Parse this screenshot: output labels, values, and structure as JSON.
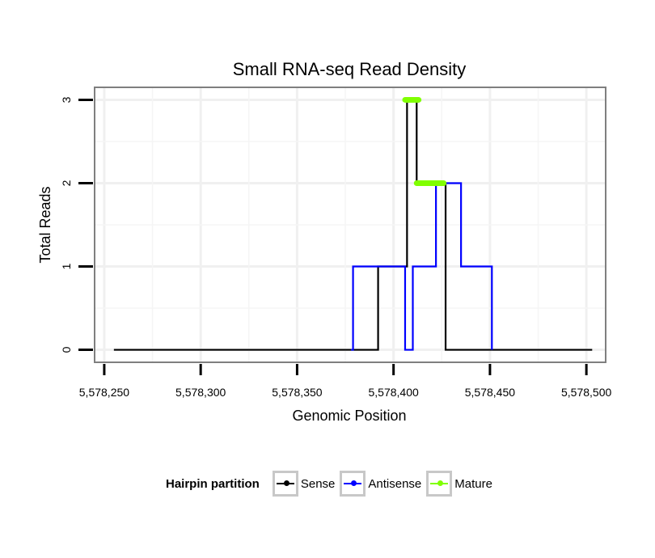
{
  "chart_data": {
    "type": "line",
    "title": "Small RNA-seq Read Density",
    "xlabel": "Genomic Position",
    "ylabel": "Total Reads",
    "xlim": [
      5578245,
      5578510
    ],
    "ylim": [
      -0.15,
      3.15
    ],
    "x_ticks": [
      5578250,
      5578300,
      5578350,
      5578400,
      5578450,
      5578500
    ],
    "x_tick_labels": [
      "5,578,250",
      "5,578,300",
      "5,578,350",
      "5,578,400",
      "5,578,450",
      "5,578,500"
    ],
    "y_ticks": [
      0,
      1,
      2,
      3
    ],
    "y_tick_labels": [
      "0",
      "1",
      "2",
      "3"
    ],
    "grid": true,
    "legend_position": "bottom",
    "series": [
      {
        "name": "Sense",
        "color": "#000000",
        "line_style": "step",
        "x": [
          5578255,
          5578391,
          5578392,
          5578406,
          5578407,
          5578411,
          5578412,
          5578426,
          5578427,
          5578503
        ],
        "values": [
          0,
          0,
          1,
          1,
          3,
          3,
          2,
          2,
          0,
          0
        ]
      },
      {
        "name": "Antisense",
        "color": "#0000ff",
        "line_style": "step",
        "x": [
          5578378,
          5578379,
          5578405,
          5578406,
          5578409,
          5578410,
          5578421,
          5578422,
          5578434,
          5578435,
          5578450,
          5578451
        ],
        "values": [
          0,
          1,
          1,
          0,
          0,
          1,
          1,
          2,
          2,
          1,
          1,
          0
        ]
      },
      {
        "name": "Mature",
        "color": "#80ff00",
        "line_style": "segments",
        "segments": [
          {
            "x": [
              5578406,
              5578413
            ],
            "y": 3
          },
          {
            "x": [
              5578412,
              5578426
            ],
            "y": 2
          }
        ]
      }
    ]
  },
  "legend": {
    "title": "Hairpin partition",
    "items": [
      {
        "label": "Sense",
        "color": "#000000"
      },
      {
        "label": "Antisense",
        "color": "#0000ff"
      },
      {
        "label": "Mature",
        "color": "#80ff00"
      }
    ]
  }
}
